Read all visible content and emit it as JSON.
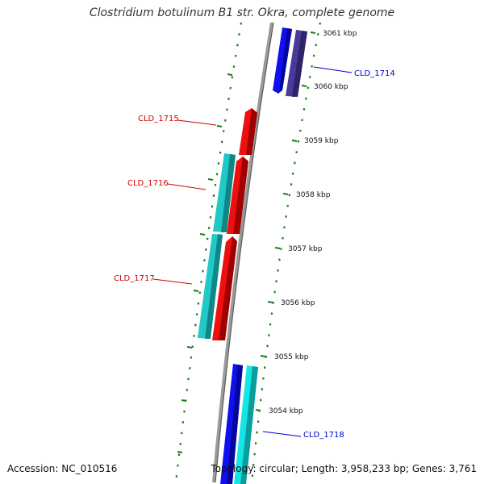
{
  "title": "Clostridium botulinum B1 str. Okra, complete genome",
  "footer": {
    "accession": "Accession: NC_010516",
    "summary": "Topology: circular; Length: 3,958,233 bp; Genes: 3,761"
  },
  "colors": {
    "backbone": "#8a8a8a",
    "forward_blue": "#1010ee",
    "forward_purple": "#4a3a9a",
    "forward_cyan": "#15e5e5",
    "reverse_red": "#ee1010",
    "reverse_cyan": "#20c8c8",
    "tick_green": "#1a7a1a",
    "label_red": "#d40000",
    "label_blue": "#0000cc"
  },
  "ruler_ticks": [
    {
      "label": "3061 kbp"
    },
    {
      "label": "3060 kbp"
    },
    {
      "label": "3059 kbp"
    },
    {
      "label": "3058 kbp"
    },
    {
      "label": "3057 kbp"
    },
    {
      "label": "3056 kbp"
    },
    {
      "label": "3055 kbp"
    },
    {
      "label": "3054 kbp"
    }
  ],
  "genes": [
    {
      "name": "CLD_1714",
      "strand": "+",
      "color": "forward_blue"
    },
    {
      "name": "CLD_1715",
      "strand": "-",
      "color": "reverse_red"
    },
    {
      "name": "CLD_1716",
      "strand": "-",
      "color": "reverse_red"
    },
    {
      "name": "CLD_1717",
      "strand": "-",
      "color": "reverse_red"
    },
    {
      "name": "CLD_1718",
      "strand": "+",
      "color": "forward_blue"
    }
  ]
}
